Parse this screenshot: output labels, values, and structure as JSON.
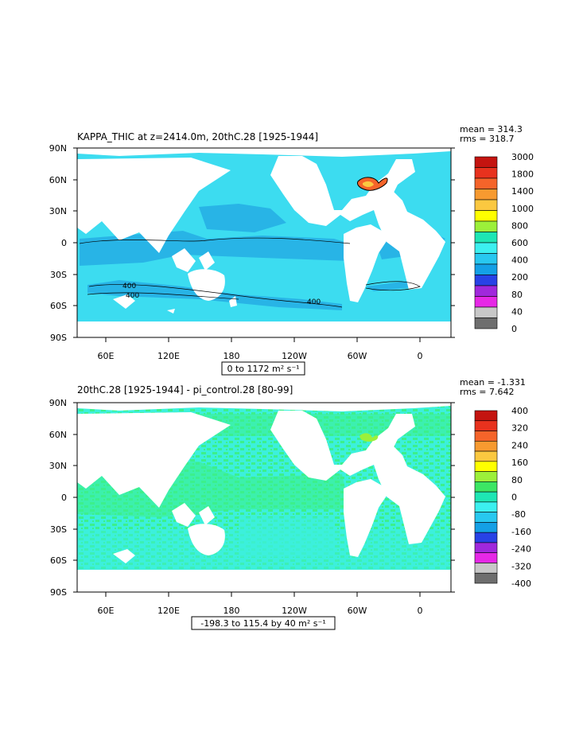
{
  "panels": [
    {
      "id": "top",
      "title": "KAPPA_THIC at z=2414.0m, 20thC.28 [1925-1944]",
      "stats": {
        "mean": "mean = 314.3",
        "rms": "rms = 318.7"
      },
      "range_label": "0 to 1172 m² s⁻¹",
      "lat_ticks": [
        "90N",
        "60N",
        "30N",
        "0",
        "30S",
        "60S",
        "90S"
      ],
      "lon_ticks": [
        "60E",
        "120E",
        "180",
        "120W",
        "60W",
        "0"
      ],
      "contour_labels": [
        "400",
        "400",
        "400"
      ],
      "legend": {
        "labels": [
          "3000",
          "1800",
          "1400",
          "1000",
          "800",
          "600",
          "400",
          "200",
          "80",
          "40",
          "0"
        ],
        "colors": [
          "#c41410",
          "#e8321e",
          "#f5642a",
          "#f79a30",
          "#fbc840",
          "#ffff00",
          "#9cf03a",
          "#1ee6b4",
          "#3cf0f0",
          "#28c8f0",
          "#14a0e6",
          "#2842e6",
          "#a028dc",
          "#e628e6",
          "#c8c8c8",
          "#6e6e6e"
        ]
      }
    },
    {
      "id": "bottom",
      "title": "20thC.28 [1925-1944] - pi_control.28 [80-99]",
      "stats": {
        "mean": "mean = -1.331",
        "rms": "rms = 7.642"
      },
      "range_label": "-198.3 to 115.4 by 40 m² s⁻¹",
      "lat_ticks": [
        "90N",
        "60N",
        "30N",
        "0",
        "30S",
        "60S",
        "90S"
      ],
      "lon_ticks": [
        "60E",
        "120E",
        "180",
        "120W",
        "60W",
        "0"
      ],
      "legend": {
        "labels": [
          "400",
          "320",
          "240",
          "160",
          "80",
          "0",
          "-80",
          "-160",
          "-240",
          "-320",
          "-400"
        ],
        "colors": [
          "#c41410",
          "#e8321e",
          "#f5642a",
          "#f79a30",
          "#fbc840",
          "#ffff00",
          "#9cf03a",
          "#3ce664",
          "#1ee6b4",
          "#3cf0f0",
          "#28c8f0",
          "#14a0e6",
          "#2842e6",
          "#a028dc",
          "#e628e6",
          "#c8c8c8",
          "#6e6e6e"
        ]
      }
    }
  ],
  "colors": {
    "ocean_top": "#3cdcf0",
    "ocean_top_band": "#28b4e6",
    "ocean_bottom_cyan": "#3cf0dc",
    "ocean_bottom_green": "#3cf08c",
    "land": "#ffffff"
  }
}
